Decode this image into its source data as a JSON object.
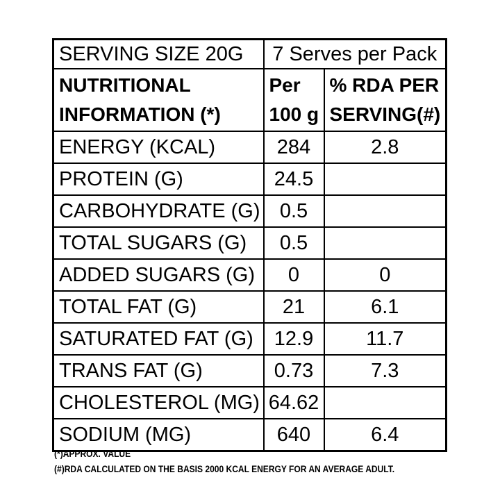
{
  "label": {
    "serving": {
      "size": "SERVING SIZE 20G",
      "serves": "7 Serves per Pack"
    },
    "header": {
      "col1_line1": "NUTRITIONAL",
      "col1_line2": "INFORMATION (*)",
      "col2_line1": "Per",
      "col2_line2": "100 g",
      "col3_line1": "% RDA PER",
      "col3_line2": "SERVING(#)"
    },
    "rows": [
      {
        "nutrient": "ENERGY (KCAL)",
        "per_100g": "284",
        "rda_per_serving": "2.8"
      },
      {
        "nutrient": "PROTEIN (G)",
        "per_100g": "24.5",
        "rda_per_serving": ""
      },
      {
        "nutrient": "CARBOHYDRATE (G)",
        "per_100g": "0.5",
        "rda_per_serving": ""
      },
      {
        "nutrient": "TOTAL SUGARS (G)",
        "per_100g": "0.5",
        "rda_per_serving": ""
      },
      {
        "nutrient": "ADDED SUGARS (G)",
        "per_100g": "0",
        "rda_per_serving": "0"
      },
      {
        "nutrient": "TOTAL FAT (G)",
        "per_100g": "21",
        "rda_per_serving": "6.1"
      },
      {
        "nutrient": "SATURATED FAT (G)",
        "per_100g": "12.9",
        "rda_per_serving": "11.7"
      },
      {
        "nutrient": "TRANS FAT (G)",
        "per_100g": "0.73",
        "rda_per_serving": "7.3"
      },
      {
        "nutrient": "CHOLESTEROL (MG)",
        "per_100g": "64.62",
        "rda_per_serving": ""
      },
      {
        "nutrient": "SODIUM (MG)",
        "per_100g": "640",
        "rda_per_serving": "6.4"
      }
    ],
    "footnotes": [
      "(*)APPROX. VALUE",
      "(#)RDA CALCULATED ON THE BASIS 2000 KCAL ENERGY FOR AN AVERAGE ADULT."
    ],
    "colors": {
      "text": "#000000",
      "border": "#000000",
      "background": "#ffffff"
    }
  }
}
